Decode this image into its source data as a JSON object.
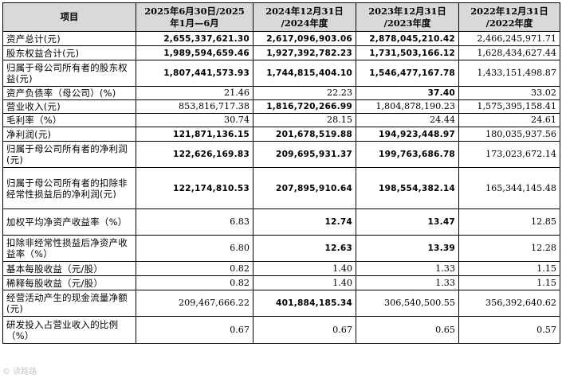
{
  "header": {
    "item": "项目",
    "col1": [
      "2025年6月30日/2025",
      "年1月—6月"
    ],
    "col2": [
      "2024年12月31日",
      "/2024年度"
    ],
    "col3": [
      "2023年12月31日",
      "/2023年度"
    ],
    "col4": [
      "2022年12月31日",
      "/2022年度"
    ]
  },
  "rows": [
    {
      "label": "资产总计(元)",
      "values": [
        "2,655,337,621.30",
        "2,617,096,903.06",
        "2,878,045,210.42",
        "2,466,245,971.71"
      ],
      "bold": [
        true,
        true,
        true,
        false
      ]
    },
    {
      "label": "股东权益合计(元)",
      "values": [
        "1,989,594,659.46",
        "1,927,392,782.23",
        "1,731,503,166.12",
        "1,628,434,627.44"
      ],
      "bold": [
        true,
        true,
        true,
        false
      ]
    },
    {
      "label": "归属于母公司所有者的股东权益(元)",
      "values": [
        "1,807,441,573.93",
        "1,744,815,404.10",
        "1,546,477,167.78",
        "1,433,151,498.87"
      ],
      "bold": [
        true,
        true,
        true,
        false
      ]
    },
    {
      "label": "资产负债率（母公司）(%)",
      "values": [
        "21.46",
        "22.23",
        "37.40",
        "33.02"
      ],
      "bold": [
        false,
        false,
        true,
        false
      ]
    },
    {
      "label": "营业收入(元)",
      "values": [
        "853,816,717.38",
        "1,816,720,266.99",
        "1,804,878,190.23",
        "1,575,395,158.41"
      ],
      "bold": [
        false,
        true,
        false,
        false
      ]
    },
    {
      "label": "毛利率（%）",
      "values": [
        "30.74",
        "28.15",
        "24.44",
        "24.61"
      ],
      "bold": [
        false,
        false,
        false,
        false
      ]
    },
    {
      "label": "净利润(元)",
      "values": [
        "121,871,136.15",
        "201,678,519.88",
        "194,923,448.97",
        "180,035,937.56"
      ],
      "bold": [
        true,
        true,
        true,
        false
      ]
    },
    {
      "label": "归属于母公司所有者的净利润(元)",
      "values": [
        "122,626,169.83",
        "209,695,931.37",
        "199,763,686.78",
        "173,023,672.14"
      ],
      "bold": [
        true,
        true,
        true,
        false
      ]
    },
    {
      "label": "归属于母公司所有者的扣除非经常性损益后的净利润(元)",
      "values": [
        "122,174,810.53",
        "207,895,910.64",
        "198,554,382.14",
        "165,344,145.48"
      ],
      "bold": [
        true,
        true,
        true,
        false
      ]
    },
    {
      "label": "加权平均净资产收益率（%）",
      "values": [
        "6.83",
        "12.74",
        "13.47",
        "12.85"
      ],
      "bold": [
        false,
        true,
        true,
        false
      ]
    },
    {
      "label": "扣除非经常性损益后净资产收益率（%）",
      "values": [
        "6.80",
        "12.63",
        "13.39",
        "12.28"
      ],
      "bold": [
        false,
        true,
        true,
        false
      ]
    },
    {
      "label": "基本每股收益（元/股）",
      "values": [
        "0.82",
        "1.40",
        "1.33",
        "1.15"
      ],
      "bold": [
        false,
        false,
        false,
        false
      ]
    },
    {
      "label": "稀释每股收益（元/股）",
      "values": [
        "0.82",
        "1.40",
        "1.33",
        "1.15"
      ],
      "bold": [
        false,
        false,
        false,
        false
      ]
    },
    {
      "label": "经营活动产生的现金流量净额(元)",
      "values": [
        "209,467,666.22",
        "401,884,185.34",
        "306,540,500.55",
        "356,392,640.62"
      ],
      "bold": [
        false,
        true,
        false,
        false
      ]
    },
    {
      "label": "研发投入占营业收入的比例（%）",
      "values": [
        "0.67",
        "0.67",
        "0.65",
        "0.57"
      ],
      "bold": [
        false,
        false,
        false,
        false
      ]
    }
  ],
  "watermark": "© 读路路"
}
